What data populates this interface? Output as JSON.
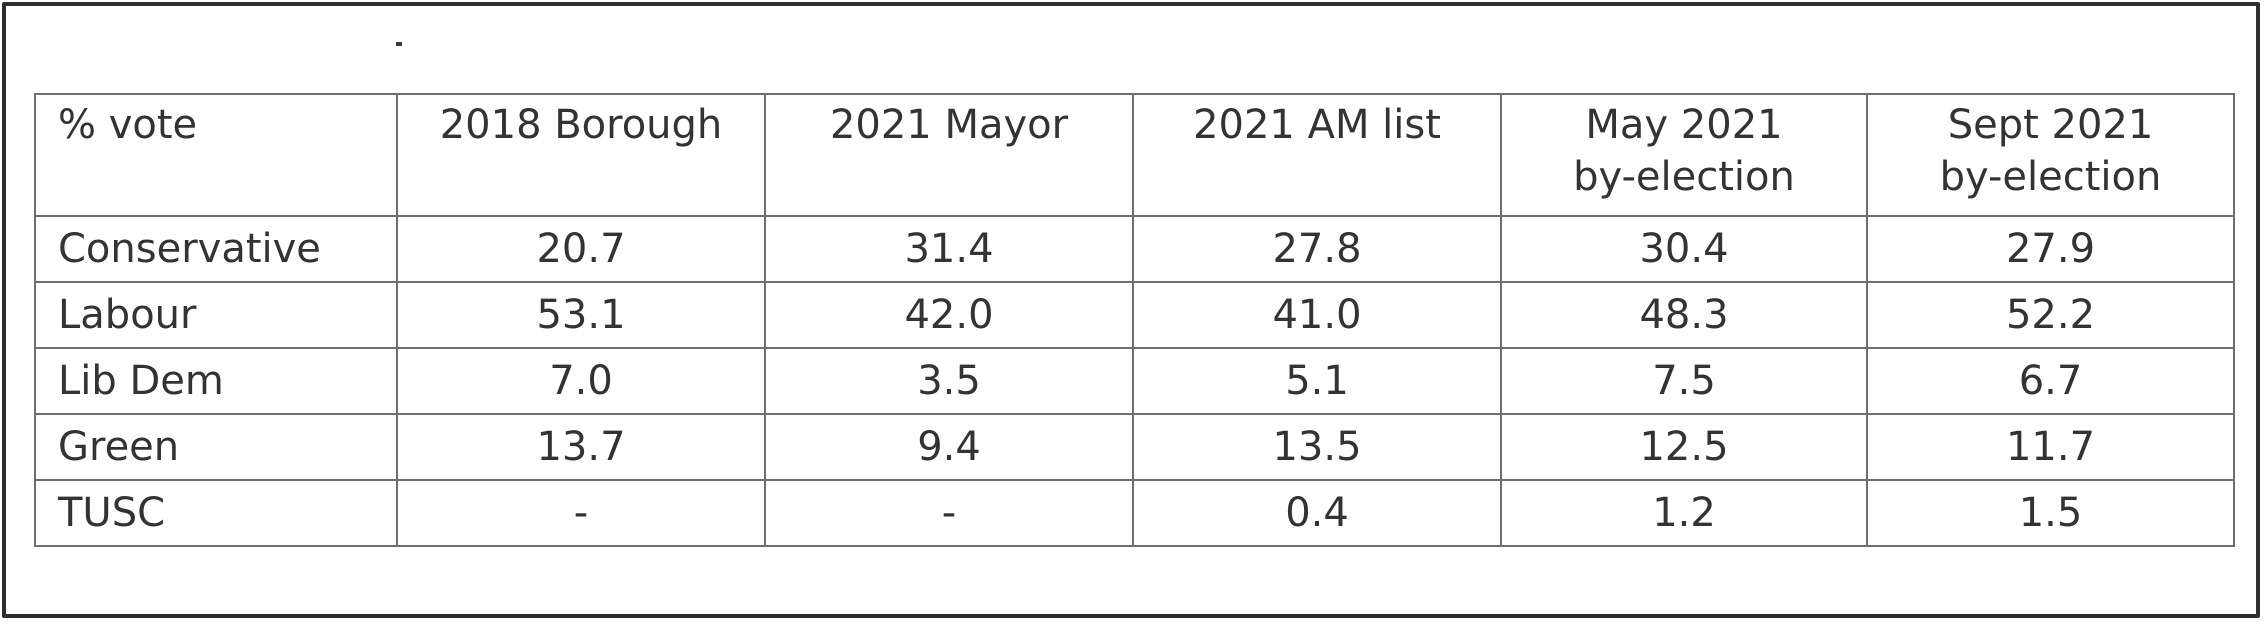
{
  "table": {
    "corner_label": "% vote",
    "columns": [
      {
        "line1": "2018 Borough",
        "line2": ""
      },
      {
        "line1": "2021 Mayor",
        "line2": ""
      },
      {
        "line1": "2021 AM list",
        "line2": ""
      },
      {
        "line1": "May 2021",
        "line2": "by-election"
      },
      {
        "line1": "Sept 2021",
        "line2": "by-election"
      }
    ],
    "rows": [
      {
        "party": "Conservative",
        "values": [
          "20.7",
          "31.4",
          "27.8",
          "30.4",
          "27.9"
        ]
      },
      {
        "party": "Labour",
        "values": [
          "53.1",
          "42.0",
          "41.0",
          "48.3",
          "52.2"
        ]
      },
      {
        "party": "Lib Dem",
        "values": [
          "7.0",
          "3.5",
          "5.1",
          "7.5",
          "6.7"
        ]
      },
      {
        "party": "Green",
        "values": [
          "13.7",
          "9.4",
          "13.5",
          "12.5",
          "11.7"
        ]
      },
      {
        "party": "TUSC",
        "values": [
          "-",
          "-",
          "0.4",
          "1.2",
          "1.5"
        ]
      }
    ]
  }
}
